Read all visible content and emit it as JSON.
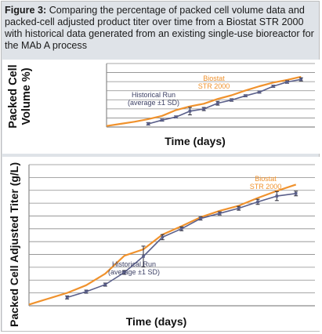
{
  "caption": {
    "figure_label": "Figure 3:",
    "text": "Comparing the percentage of packed cell volume data and packed-cell adjusted product titer over time from a Biostat STR 2000 with historical data generated from an existing single-use bioreactor for the MAb A process"
  },
  "colors": {
    "biostat": "#f0922d",
    "historical": "#5a5f8a",
    "grid": "#8a8a8a",
    "frame": "#bdbdbd",
    "background": "#dfe3e8"
  },
  "chart_data": [
    {
      "type": "line",
      "title": "",
      "xlabel": "Time (days)",
      "ylabel": "Packed Cell Volume %)",
      "ylabel_lines": [
        "Packed Cell",
        "Volume %)"
      ],
      "x_ticks_labeled": false,
      "y_ticks_labeled": false,
      "grid": true,
      "xlim": [
        0,
        15
      ],
      "ylim": [
        0,
        6
      ],
      "annotations": {
        "biostat": [
          "Biostat",
          "STR 2000"
        ],
        "historical": [
          "Historical Run",
          "(average ±1 SD)"
        ]
      },
      "series": [
        {
          "name": "Biostat STR 2000",
          "color": "#f0922d",
          "x": [
            0,
            1,
            2,
            3,
            4,
            5,
            6,
            7,
            8,
            9,
            10,
            11,
            12,
            13,
            14
          ],
          "y": [
            0.1,
            0.3,
            0.5,
            0.75,
            1.05,
            1.6,
            1.95,
            2.2,
            2.65,
            3.0,
            3.45,
            3.85,
            4.2,
            4.45,
            4.75
          ]
        },
        {
          "name": "Historical Run (average ±1 SD)",
          "color": "#5a5f8a",
          "x": [
            3,
            4,
            5,
            6,
            7,
            8,
            9,
            10,
            11,
            12,
            13,
            14
          ],
          "y": [
            0.3,
            0.65,
            0.95,
            1.5,
            1.7,
            2.25,
            2.55,
            2.95,
            3.3,
            3.85,
            4.25,
            4.5
          ],
          "err": [
            0.12,
            0.1,
            0.1,
            0.35,
            0.15,
            0.18,
            0.12,
            0.1,
            0.1,
            0.1,
            0.12,
            0.15
          ]
        }
      ]
    },
    {
      "type": "line",
      "title": "",
      "xlabel": "Time (days)",
      "ylabel": "Packed Cell Adjusted Titer (g/L)",
      "ylabel_lines": [
        "Packed Cell Adjusted Titer (g/L)"
      ],
      "x_ticks_labeled": false,
      "y_ticks_labeled": false,
      "grid": true,
      "xlim": [
        0,
        15
      ],
      "ylim": [
        0,
        11
      ],
      "annotations": {
        "biostat": [
          "Biostat",
          "STR 2000"
        ],
        "historical": [
          "Historical Run",
          "(average ±1 SD)"
        ]
      },
      "series": [
        {
          "name": "Biostat STR 2000",
          "color": "#f0922d",
          "x": [
            0,
            1,
            2,
            3,
            4,
            5,
            6,
            7,
            8,
            9,
            10,
            11,
            12,
            13,
            14
          ],
          "y": [
            0.1,
            0.55,
            1.0,
            1.6,
            2.5,
            3.9,
            4.4,
            5.55,
            6.2,
            6.9,
            7.4,
            7.8,
            8.4,
            8.95,
            9.45
          ]
        },
        {
          "name": "Historical Run (average ±1 SD)",
          "color": "#5a5f8a",
          "x": [
            2,
            3,
            4,
            5,
            6,
            7,
            8,
            9,
            10,
            11,
            12,
            13,
            14
          ],
          "y": [
            0.65,
            1.1,
            1.65,
            2.6,
            3.85,
            5.35,
            6.0,
            6.8,
            7.2,
            7.6,
            8.1,
            8.55,
            8.75
          ],
          "err": [
            0.12,
            0.12,
            0.12,
            0.15,
            0.8,
            0.2,
            0.15,
            0.12,
            0.12,
            0.15,
            0.2,
            0.35,
            0.18
          ]
        }
      ]
    }
  ]
}
